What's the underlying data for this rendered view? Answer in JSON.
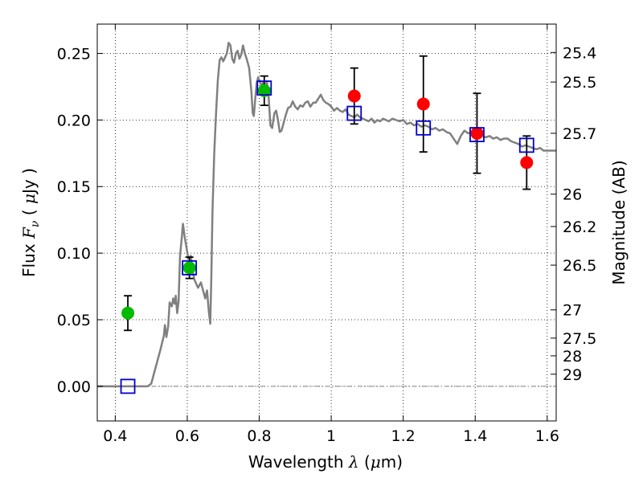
{
  "chart_data": {
    "type": "scatter",
    "title": "",
    "xlabel": "Wavelength",
    "xlabel_symbol": "λ",
    "xlabel_unit_open": "(",
    "xlabel_unit_mu": "μ",
    "xlabel_unit_rest": "m)",
    "ylabel_left": "Flux",
    "ylabel_symbol": "F",
    "ylabel_subscript": "ν",
    "ylabel_unit_open": "(",
    "ylabel_unit_mu": "μ",
    "ylabel_unit_rest": "Jy )",
    "ylabel_right": "Magnitude (AB)",
    "xlim": [
      0.35,
      1.625
    ],
    "ylim": [
      -0.026,
      0.272
    ],
    "grid": true,
    "grid_style": "dotted",
    "x_ticks": [
      0.4,
      0.6,
      0.8,
      1.0,
      1.2,
      1.4,
      1.6
    ],
    "x_tick_labels": [
      "0.4",
      "0.6",
      "0.8",
      "1",
      "1.2",
      "1.4",
      "1.6"
    ],
    "y_ticks": [
      0.0,
      0.05,
      0.1,
      0.15,
      0.2,
      0.25
    ],
    "y_tick_labels": [
      "0.00",
      "0.05",
      "0.10",
      "0.15",
      "0.20",
      "0.25"
    ],
    "right_axis_ticks": [
      {
        "flux": 0.2507,
        "label": "25.4"
      },
      {
        "flux": 0.2285,
        "label": "25.5"
      },
      {
        "flux": 0.19,
        "label": "25.7"
      },
      {
        "flux": 0.1443,
        "label": "26"
      },
      {
        "flux": 0.12,
        "label": "26.2"
      },
      {
        "flux": 0.091,
        "label": "26.5"
      },
      {
        "flux": 0.0574,
        "label": "27"
      },
      {
        "flux": 0.0362,
        "label": "27.5"
      },
      {
        "flux": 0.0229,
        "label": "28"
      },
      {
        "flux": 0.0091,
        "label": "29"
      }
    ],
    "zero_line": {
      "y": 0.0,
      "color": "#808080",
      "style": "dash-dot"
    },
    "model_spectrum": {
      "color": "#808080",
      "points": [
        [
          0.35,
          0.0
        ],
        [
          0.49,
          0.0
        ],
        [
          0.5,
          0.002
        ],
        [
          0.51,
          0.012
        ],
        [
          0.525,
          0.027
        ],
        [
          0.535,
          0.038
        ],
        [
          0.538,
          0.046
        ],
        [
          0.542,
          0.037
        ],
        [
          0.547,
          0.045
        ],
        [
          0.551,
          0.063
        ],
        [
          0.557,
          0.06
        ],
        [
          0.561,
          0.066
        ],
        [
          0.565,
          0.062
        ],
        [
          0.568,
          0.068
        ],
        [
          0.572,
          0.055
        ],
        [
          0.576,
          0.064
        ],
        [
          0.58,
          0.098
        ],
        [
          0.585,
          0.112
        ],
        [
          0.588,
          0.122
        ],
        [
          0.593,
          0.112
        ],
        [
          0.598,
          0.104
        ],
        [
          0.603,
          0.096
        ],
        [
          0.61,
          0.098
        ],
        [
          0.615,
          0.087
        ],
        [
          0.62,
          0.08
        ],
        [
          0.63,
          0.074
        ],
        [
          0.638,
          0.078
        ],
        [
          0.645,
          0.071
        ],
        [
          0.65,
          0.066
        ],
        [
          0.655,
          0.072
        ],
        [
          0.66,
          0.056
        ],
        [
          0.664,
          0.047
        ],
        [
          0.667,
          0.083
        ],
        [
          0.67,
          0.13
        ],
        [
          0.675,
          0.175
        ],
        [
          0.68,
          0.205
        ],
        [
          0.685,
          0.23
        ],
        [
          0.69,
          0.245
        ],
        [
          0.695,
          0.247
        ],
        [
          0.7,
          0.244
        ],
        [
          0.705,
          0.247
        ],
        [
          0.71,
          0.25
        ],
        [
          0.715,
          0.258
        ],
        [
          0.72,
          0.256
        ],
        [
          0.725,
          0.246
        ],
        [
          0.73,
          0.243
        ],
        [
          0.735,
          0.25
        ],
        [
          0.74,
          0.252
        ],
        [
          0.745,
          0.246
        ],
        [
          0.75,
          0.249
        ],
        [
          0.755,
          0.256
        ],
        [
          0.76,
          0.25
        ],
        [
          0.765,
          0.246
        ],
        [
          0.772,
          0.239
        ],
        [
          0.778,
          0.222
        ],
        [
          0.782,
          0.205
        ],
        [
          0.785,
          0.203
        ],
        [
          0.789,
          0.216
        ],
        [
          0.793,
          0.228
        ],
        [
          0.797,
          0.232
        ],
        [
          0.8,
          0.23
        ],
        [
          0.806,
          0.226
        ],
        [
          0.811,
          0.228
        ],
        [
          0.816,
          0.222
        ],
        [
          0.821,
          0.229
        ],
        [
          0.826,
          0.218
        ],
        [
          0.831,
          0.196
        ],
        [
          0.836,
          0.194
        ],
        [
          0.842,
          0.205
        ],
        [
          0.847,
          0.207
        ],
        [
          0.852,
          0.2
        ],
        [
          0.857,
          0.191
        ],
        [
          0.862,
          0.192
        ],
        [
          0.868,
          0.198
        ],
        [
          0.874,
          0.204
        ],
        [
          0.88,
          0.209
        ],
        [
          0.887,
          0.21
        ],
        [
          0.893,
          0.214
        ],
        [
          0.9,
          0.21
        ],
        [
          0.907,
          0.208
        ],
        [
          0.914,
          0.211
        ],
        [
          0.921,
          0.21
        ],
        [
          0.928,
          0.213
        ],
        [
          0.935,
          0.214
        ],
        [
          0.942,
          0.21
        ],
        [
          0.95,
          0.213
        ],
        [
          0.957,
          0.213
        ],
        [
          0.964,
          0.216
        ],
        [
          0.971,
          0.219
        ],
        [
          0.978,
          0.215
        ],
        [
          0.985,
          0.213
        ],
        [
          0.992,
          0.212
        ],
        [
          1.0,
          0.21
        ],
        [
          1.008,
          0.207
        ],
        [
          1.016,
          0.209
        ],
        [
          1.024,
          0.207
        ],
        [
          1.032,
          0.206
        ],
        [
          1.04,
          0.208
        ],
        [
          1.048,
          0.204
        ],
        [
          1.056,
          0.203
        ],
        [
          1.064,
          0.202
        ],
        [
          1.072,
          0.204
        ],
        [
          1.08,
          0.202
        ],
        [
          1.088,
          0.201
        ],
        [
          1.096,
          0.2
        ],
        [
          1.104,
          0.199
        ],
        [
          1.112,
          0.201
        ],
        [
          1.12,
          0.198
        ],
        [
          1.128,
          0.2
        ],
        [
          1.136,
          0.199
        ],
        [
          1.144,
          0.201
        ],
        [
          1.152,
          0.2
        ],
        [
          1.16,
          0.199
        ],
        [
          1.17,
          0.201
        ],
        [
          1.18,
          0.2
        ],
        [
          1.19,
          0.199
        ],
        [
          1.2,
          0.2
        ],
        [
          1.21,
          0.197
        ],
        [
          1.22,
          0.198
        ],
        [
          1.23,
          0.196
        ],
        [
          1.24,
          0.197
        ],
        [
          1.25,
          0.195
        ],
        [
          1.26,
          0.196
        ],
        [
          1.27,
          0.195
        ],
        [
          1.28,
          0.193
        ],
        [
          1.29,
          0.194
        ],
        [
          1.3,
          0.192
        ],
        [
          1.31,
          0.193
        ],
        [
          1.32,
          0.191
        ],
        [
          1.33,
          0.19
        ],
        [
          1.34,
          0.186
        ],
        [
          1.35,
          0.182
        ],
        [
          1.36,
          0.188
        ],
        [
          1.37,
          0.192
        ],
        [
          1.38,
          0.19
        ],
        [
          1.39,
          0.191
        ],
        [
          1.4,
          0.189
        ],
        [
          1.41,
          0.19
        ],
        [
          1.42,
          0.188
        ],
        [
          1.43,
          0.187
        ],
        [
          1.44,
          0.188
        ],
        [
          1.45,
          0.186
        ],
        [
          1.46,
          0.187
        ],
        [
          1.47,
          0.185
        ],
        [
          1.48,
          0.186
        ],
        [
          1.49,
          0.186
        ],
        [
          1.5,
          0.184
        ],
        [
          1.51,
          0.183
        ],
        [
          1.52,
          0.182
        ],
        [
          1.53,
          0.18
        ],
        [
          1.54,
          0.181
        ],
        [
          1.55,
          0.18
        ],
        [
          1.56,
          0.179
        ],
        [
          1.57,
          0.178
        ],
        [
          1.58,
          0.179
        ],
        [
          1.59,
          0.177
        ],
        [
          1.6,
          0.177
        ],
        [
          1.625,
          0.177
        ]
      ]
    },
    "observed_green": {
      "color": "#00bb00",
      "points": [
        {
          "x": 0.435,
          "y": 0.055,
          "err": 0.013
        },
        {
          "x": 0.606,
          "y": 0.089,
          "err": 0.008
        },
        {
          "x": 0.814,
          "y": 0.222,
          "err": 0.011
        }
      ]
    },
    "observed_red": {
      "color": "#ff0000",
      "points": [
        {
          "x": 1.064,
          "y": 0.218,
          "err": 0.021
        },
        {
          "x": 1.256,
          "y": 0.212,
          "err": 0.036
        },
        {
          "x": 1.405,
          "y": 0.19,
          "err": 0.03
        },
        {
          "x": 1.543,
          "y": 0.168,
          "err": 0.02
        }
      ]
    },
    "model_photometry": {
      "color": "#0000cc",
      "marker": "open-square",
      "points": [
        {
          "x": 0.435,
          "y": 0.0
        },
        {
          "x": 0.606,
          "y": 0.089
        },
        {
          "x": 0.814,
          "y": 0.224
        },
        {
          "x": 1.064,
          "y": 0.205
        },
        {
          "x": 1.256,
          "y": 0.194
        },
        {
          "x": 1.405,
          "y": 0.189
        },
        {
          "x": 1.543,
          "y": 0.181
        }
      ]
    }
  }
}
